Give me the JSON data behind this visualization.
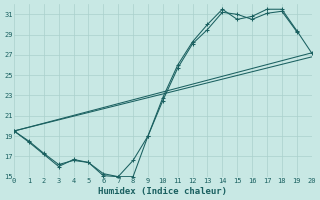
{
  "xlabel": "Humidex (Indice chaleur)",
  "bg_color": "#c8e8e4",
  "grid_color": "#aad0cc",
  "line_color": "#1a6060",
  "xlim": [
    0,
    20
  ],
  "ylim": [
    15,
    32
  ],
  "yticks": [
    15,
    17,
    19,
    21,
    23,
    25,
    27,
    29,
    31
  ],
  "xticks": [
    0,
    1,
    2,
    3,
    4,
    5,
    6,
    7,
    8,
    9,
    10,
    11,
    12,
    13,
    14,
    15,
    16,
    17,
    18,
    19,
    20
  ],
  "line1_x": [
    0,
    1,
    2,
    3,
    4,
    5,
    6,
    7,
    8,
    9,
    10,
    11,
    12,
    13,
    14,
    15,
    16,
    17,
    18,
    19
  ],
  "line1_y": [
    19.5,
    18.5,
    17.3,
    16.2,
    16.6,
    16.4,
    15.1,
    15.0,
    15.0,
    19.0,
    22.5,
    25.7,
    28.1,
    29.5,
    31.2,
    31.0,
    30.5,
    31.1,
    31.3,
    29.3
  ],
  "line2_x": [
    0,
    1,
    2,
    3,
    4,
    5,
    6,
    7,
    8,
    9,
    10,
    11,
    12,
    13,
    14,
    15,
    16,
    17,
    18,
    19,
    20
  ],
  "line2_y": [
    19.5,
    18.4,
    17.2,
    16.0,
    16.7,
    16.4,
    15.3,
    15.0,
    16.6,
    19.0,
    22.8,
    26.0,
    28.3,
    30.0,
    31.5,
    30.5,
    30.8,
    31.5,
    31.5,
    29.4,
    27.2
  ],
  "line3_x": [
    0,
    20
  ],
  "line3_y": [
    19.5,
    27.2
  ],
  "line4_x": [
    0,
    20
  ],
  "line4_y": [
    19.5,
    26.8
  ]
}
